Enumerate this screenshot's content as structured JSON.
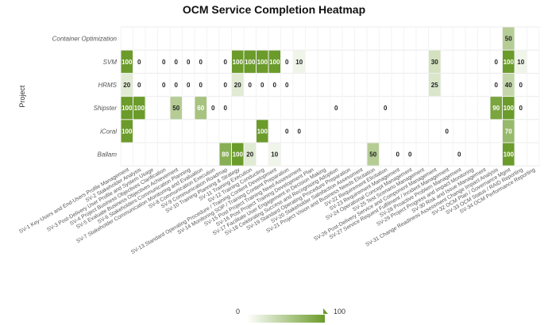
{
  "chart_data": {
    "type": "heatmap",
    "title": "OCM Service Completion Heatmap",
    "ylabel": "Project",
    "xlabel": "",
    "x_categories": [
      "SV-1 Key-Users and End-Users Profile Management",
      "SV-2 Stakeholder Analysis",
      "SV-3 Post-Delivery User Profile and System Usage",
      "SV-4 Project Business Objectives Clarification",
      "SV-5 Evaluate Business Objectives Achievement",
      "SV-6 Stakeholders Communication Planning",
      "SV-7 Stakeholder Communication Monitoring and Evaluation",
      "SV-8 Communication Execution",
      "SV-9 Communication Roadmap",
      "SV-10 Training Planning & Strategy",
      "SV-11 Training Execution",
      "SV-12 Training Conducting",
      "SV-13 Standard Operating Procedure / Training Content Development",
      "SV-14 Monitoring SOP / Training Content Preparation",
      "SV-15 Post Project Training Need Assessment",
      "SV-16 Post Project Training Development Plan",
      "SV-17 Facilitate User Engagement in Decision Making",
      "SV-18 Celebrating Success and Recognising Adoption",
      "SV-19 Standard Operating Procedure Preparation",
      "SV-20 Stakeholder Satisfaction Assessment",
      "SV-21 Project Vision and Business Needs Elicitation",
      "SV-22 Requirement Elicitation",
      "SV-23 Requirement Management",
      "SV-24 Operational Concept Management",
      "SV-25 Test Scenario Management",
      "SV-26 Post-Delivery Service and Component Management",
      "SV-27 Service Request Fulfilment / Incident Management",
      "SV-28 Proactive Problem Management",
      "SV-29 Project Progress and Impact Monitoring",
      "SV-30 Risk and Issue Management",
      "SV-31 Change Readiness Assessment Change Impact Analysis",
      "SV-32 OCM Plan / Governance Mgmt",
      "SV-33 OCM Status / RAID Reporting",
      "SV-34 OCM Performance Reporting"
    ],
    "y_categories": [
      "Container Optimization",
      "SVM",
      "HRMS",
      "Shipster",
      "iCoral",
      "Ballam"
    ],
    "values": [
      [
        null,
        null,
        null,
        null,
        null,
        null,
        null,
        null,
        null,
        null,
        null,
        null,
        null,
        null,
        null,
        null,
        null,
        null,
        null,
        null,
        null,
        null,
        null,
        null,
        null,
        null,
        null,
        null,
        null,
        null,
        null,
        50,
        null,
        null
      ],
      [
        100,
        0,
        null,
        0,
        0,
        0,
        0,
        null,
        0,
        100,
        100,
        100,
        100,
        0,
        10,
        null,
        null,
        null,
        null,
        null,
        null,
        null,
        null,
        null,
        null,
        30,
        null,
        null,
        null,
        null,
        0,
        100,
        10,
        null
      ],
      [
        20,
        0,
        null,
        0,
        0,
        0,
        0,
        null,
        0,
        20,
        0,
        0,
        0,
        0,
        null,
        null,
        null,
        null,
        null,
        null,
        null,
        null,
        null,
        null,
        null,
        25,
        null,
        null,
        null,
        null,
        0,
        40,
        0,
        null
      ],
      [
        100,
        100,
        null,
        null,
        50,
        null,
        60,
        0,
        0,
        null,
        null,
        null,
        null,
        null,
        null,
        null,
        null,
        0,
        null,
        null,
        null,
        0,
        null,
        null,
        null,
        null,
        null,
        null,
        null,
        null,
        90,
        100,
        0,
        null
      ],
      [
        100,
        null,
        null,
        null,
        null,
        null,
        null,
        null,
        null,
        null,
        null,
        100,
        null,
        0,
        0,
        null,
        null,
        null,
        null,
        null,
        null,
        null,
        null,
        null,
        null,
        null,
        0,
        null,
        null,
        null,
        null,
        70,
        null,
        null
      ],
      [
        null,
        null,
        null,
        null,
        null,
        null,
        null,
        null,
        80,
        100,
        20,
        null,
        10,
        null,
        null,
        null,
        null,
        null,
        null,
        null,
        50,
        null,
        0,
        0,
        null,
        null,
        null,
        0,
        null,
        null,
        null,
        100,
        null,
        null
      ]
    ],
    "color_scale": {
      "min": 0,
      "max": 100,
      "min_color": "#ffffff",
      "max_color": "#6b9b2a"
    },
    "legend": {
      "position": "bottom-center",
      "min_label": "0",
      "max_label": "100"
    }
  }
}
